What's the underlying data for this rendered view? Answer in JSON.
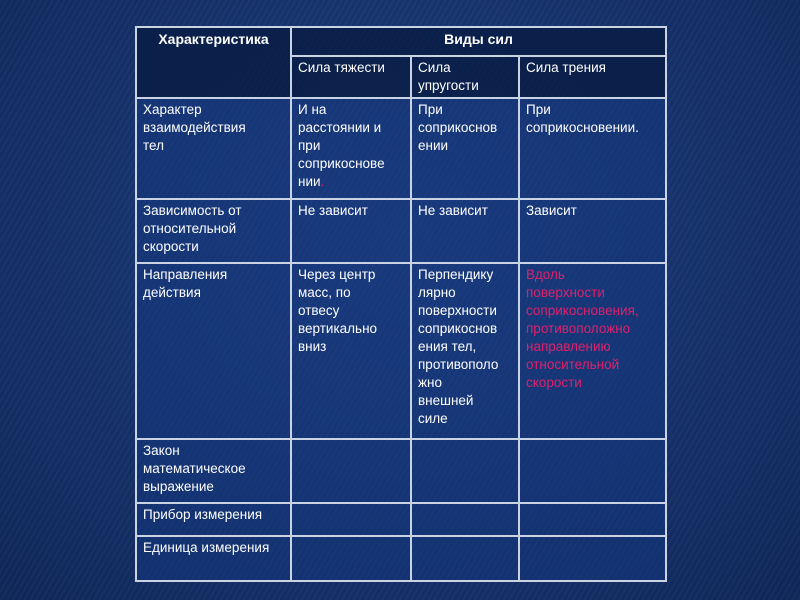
{
  "table": {
    "header": {
      "characteristic": "Характеристика",
      "force_types": "Виды сил",
      "columns": [
        "Сила тяжести",
        "Сила\nупругости",
        "Сила трения"
      ]
    },
    "rows": [
      {
        "label": "Характер\nвзаимодействия\nтел",
        "cells": [
          "И на\nрасстоянии и\nпри\nсоприкоснове\nнии",
          "При\nсоприкоснов\nении",
          "При\nсоприкосновении."
        ],
        "dot": "."
      },
      {
        "label": "Зависимость от\nотносительной\nскорости",
        "cells": [
          "Не зависит",
          "Не зависит",
          "Зависит"
        ]
      },
      {
        "label": "Направления\nдействия",
        "cells": [
          "Через центр\nмасс, по\nотвесу\nвертикально\nвниз",
          "Перпендику\nлярно\nповерхности\nсоприкоснов\nения тел,\nпротивополо\nжно\nвнешней\nсиле",
          "Вдоль\nповерхности\nсоприкосновения,\nпротивоположно\nнаправлению\nотносительной\nскорости"
        ]
      },
      {
        "label": "Закон\nматематическое\nвыражение",
        "cells": [
          "",
          "",
          ""
        ]
      },
      {
        "label": "Прибор измерения",
        "cells": [
          "",
          "",
          ""
        ]
      },
      {
        "label": "Единица измерения",
        "cells": [
          "",
          "",
          ""
        ]
      }
    ]
  },
  "colors": {
    "highlight": "#e0206a",
    "border": "#c9d3e3",
    "background": "#183570"
  }
}
